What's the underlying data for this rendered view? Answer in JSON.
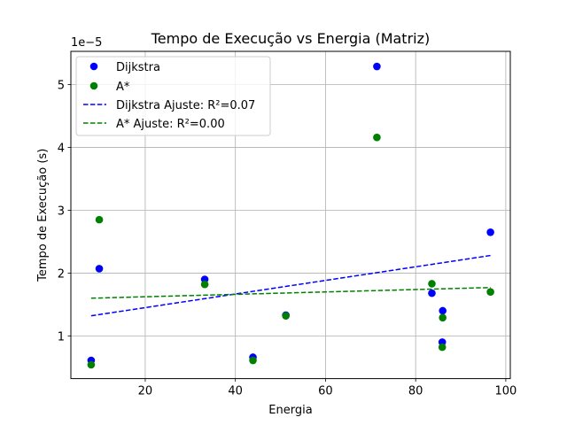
{
  "chart_data": {
    "type": "scatter",
    "title": "Tempo de Execução vs Energia (Matriz)",
    "xlabel": "Energia",
    "ylabel": "Tempo de Execução (s)",
    "y_offset_label": "1e−5",
    "xlim": [
      3.5,
      101
    ],
    "ylim": [
      3.2e-06,
      5.53e-05
    ],
    "x_ticks": [
      20,
      40,
      60,
      80,
      100
    ],
    "x_tick_labels": [
      "20",
      "40",
      "60",
      "80",
      "100"
    ],
    "y_ticks": [
      1e-05,
      2e-05,
      3e-05,
      4e-05,
      5e-05
    ],
    "y_tick_labels": [
      "1",
      "2",
      "3",
      "4",
      "5"
    ],
    "grid": true,
    "legend_position": "top-left",
    "series": [
      {
        "name": "Dijkstra",
        "kind": "points",
        "color": "#0000ff",
        "x": [
          8,
          9.8,
          33.2,
          43.9,
          51.2,
          71.4,
          83.6,
          86,
          85.9,
          96.6
        ],
        "y": [
          6.1e-06,
          2.07e-05,
          1.9e-05,
          6.6e-06,
          1.33e-05,
          5.29e-05,
          1.68e-05,
          1.4e-05,
          9e-06,
          2.65e-05
        ]
      },
      {
        "name": "A*",
        "kind": "points",
        "color": "#008000",
        "x": [
          8,
          9.8,
          33.2,
          43.9,
          51.2,
          71.4,
          83.6,
          86,
          85.9,
          96.6
        ],
        "y": [
          5.4e-06,
          2.85e-05,
          1.82e-05,
          6.1e-06,
          1.32e-05,
          4.16e-05,
          1.83e-05,
          1.29e-05,
          8.2e-06,
          1.7e-05
        ]
      },
      {
        "name": "Dijkstra Ajuste: R²=0.07",
        "kind": "line",
        "color": "#0000ff",
        "x": [
          8,
          96.6
        ],
        "y": [
          1.32e-05,
          2.28e-05
        ]
      },
      {
        "name": "A* Ajuste: R²=0.00",
        "kind": "line",
        "color": "#008000",
        "x": [
          8,
          96.6
        ],
        "y": [
          1.6e-05,
          1.77e-05
        ]
      }
    ]
  }
}
